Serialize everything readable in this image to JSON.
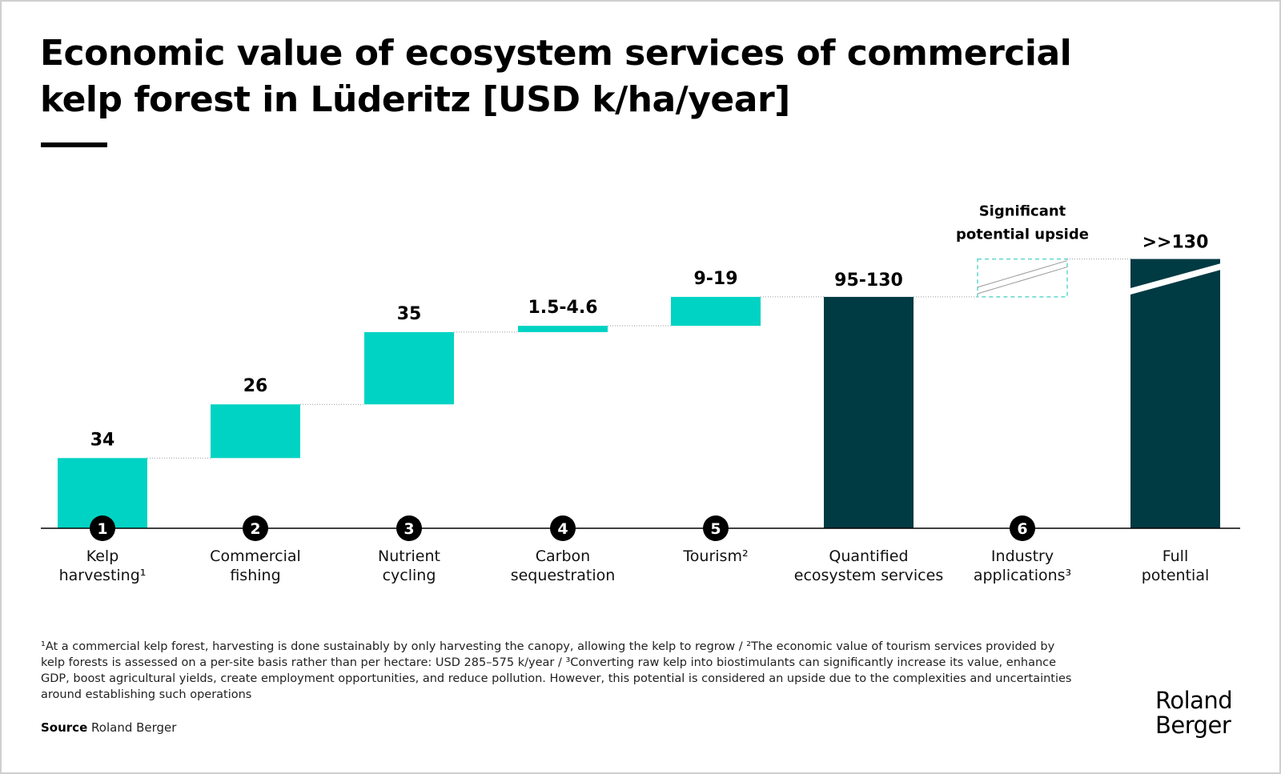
{
  "title": "Economic value of ecosystem services of commercial kelp forest in Lüderitz [USD k/ha/year]",
  "colors": {
    "increment": "#00D3C3",
    "total": "#003A43",
    "upside_box": "#5FD6CC",
    "connector": "#9a9a9a"
  },
  "chart_data": {
    "type": "waterfall",
    "title": "Economic value of ecosystem services of commercial kelp forest in Lüderitz [USD k/ha/year]",
    "unit": "USD k/ha/year",
    "categories": [
      "Kelp harvesting¹",
      "Commercial fishing",
      "Nutrient cycling",
      "Carbon sequestration",
      "Tourism²",
      "Quantified ecosystem services",
      "Industry applications³",
      "Full potential"
    ],
    "category_lines": [
      [
        "Kelp",
        "harvesting¹"
      ],
      [
        "Commercial",
        "fishing"
      ],
      [
        "Nutrient",
        "cycling"
      ],
      [
        "Carbon",
        "sequestration"
      ],
      [
        "Tourism²"
      ],
      [
        "Quantified",
        "ecosystem services"
      ],
      [
        "Industry",
        "applications³"
      ],
      [
        "Full",
        "potential"
      ]
    ],
    "markers": [
      "1",
      "2",
      "3",
      "4",
      "5",
      "",
      "6",
      ""
    ],
    "kinds": [
      "increment",
      "increment",
      "increment",
      "increment",
      "increment",
      "total",
      "upside",
      "total-broken"
    ],
    "values": [
      [
        34,
        34
      ],
      [
        26,
        26
      ],
      [
        35,
        35
      ],
      [
        1.5,
        4.6
      ],
      [
        9,
        19
      ],
      [
        95,
        130
      ],
      [
        null,
        null
      ],
      [
        130,
        null
      ]
    ],
    "labels": [
      "34",
      "26",
      "35",
      "1.5-4.6",
      "9-19",
      "95-130",
      "",
      ">>130"
    ],
    "annotation": [
      "Significant",
      "potential upside"
    ],
    "legend": "none",
    "grid": false
  },
  "footnote": "¹At a commercial kelp forest, harvesting is done sustainably by only harvesting the canopy, allowing the kelp to regrow / ²The economic value of tourism services provided by kelp forests is assessed on a per-site basis rather than per hectare: USD 285–575 k/year / ³Converting raw kelp into biostimulants can significantly increase its value, enhance GDP, boost agricultural yields, create employment opportunities, and reduce pollution. However, this potential is considered an upside due to the complexities and uncertainties around establishing such operations",
  "source": {
    "label": "Source",
    "text": "Roland Berger"
  },
  "logo": [
    "Roland",
    "Berger"
  ]
}
